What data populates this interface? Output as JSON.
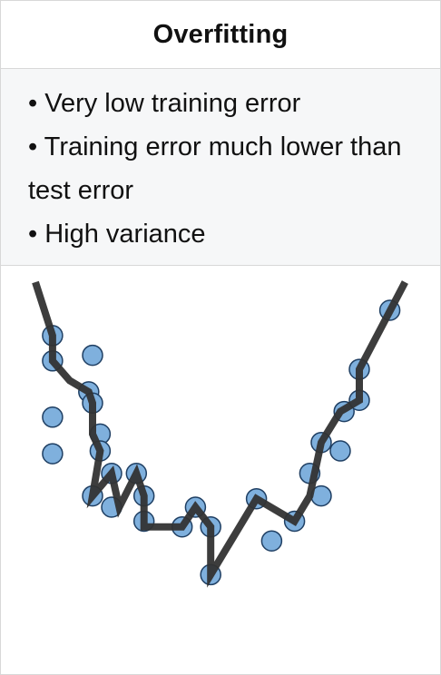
{
  "header": {
    "title": "Overfitting"
  },
  "bullets": [
    "• Very low training error",
    "• Training error much lower than test error",
    "• High variance"
  ],
  "chart_data": {
    "type": "scatter",
    "title": "",
    "xlabel": "",
    "ylabel": "",
    "xlim": [
      0,
      10
    ],
    "ylim": [
      0,
      10
    ],
    "grid": false,
    "points": [
      {
        "x": 0.45,
        "y": 8.1
      },
      {
        "x": 0.45,
        "y": 7.2
      },
      {
        "x": 0.45,
        "y": 5.2
      },
      {
        "x": 0.45,
        "y": 3.9
      },
      {
        "x": 1.5,
        "y": 7.4
      },
      {
        "x": 1.4,
        "y": 6.1
      },
      {
        "x": 1.5,
        "y": 5.7
      },
      {
        "x": 1.7,
        "y": 4.6
      },
      {
        "x": 1.7,
        "y": 4.0
      },
      {
        "x": 1.5,
        "y": 2.4
      },
      {
        "x": 2.0,
        "y": 3.2
      },
      {
        "x": 2.0,
        "y": 2.0
      },
      {
        "x": 2.65,
        "y": 3.2
      },
      {
        "x": 2.85,
        "y": 2.4
      },
      {
        "x": 2.85,
        "y": 1.5
      },
      {
        "x": 3.85,
        "y": 1.3
      },
      {
        "x": 4.2,
        "y": 2.0
      },
      {
        "x": 4.6,
        "y": 1.3
      },
      {
        "x": 4.6,
        "y": -0.4
      },
      {
        "x": 5.8,
        "y": 2.3
      },
      {
        "x": 6.2,
        "y": 0.8
      },
      {
        "x": 6.8,
        "y": 1.5
      },
      {
        "x": 7.2,
        "y": 3.2
      },
      {
        "x": 7.5,
        "y": 2.4
      },
      {
        "x": 7.5,
        "y": 4.3
      },
      {
        "x": 8.0,
        "y": 4.0
      },
      {
        "x": 8.1,
        "y": 5.4
      },
      {
        "x": 8.5,
        "y": 5.8
      },
      {
        "x": 8.5,
        "y": 6.9
      },
      {
        "x": 9.3,
        "y": 9.0
      }
    ],
    "fit_line": {
      "x": [
        0.0,
        0.45,
        0.45,
        0.9,
        1.4,
        1.5,
        1.5,
        1.7,
        1.5,
        2.0,
        2.2,
        2.65,
        2.85,
        2.85,
        3.85,
        4.2,
        4.6,
        4.6,
        5.8,
        6.8,
        7.2,
        7.5,
        8.0,
        8.5,
        8.5,
        9.7
      ],
      "y": [
        10.0,
        8.1,
        7.2,
        6.5,
        6.1,
        5.7,
        4.6,
        4.0,
        2.4,
        3.2,
        2.0,
        3.2,
        2.4,
        1.3,
        1.3,
        2.0,
        1.3,
        -0.4,
        2.3,
        1.5,
        2.4,
        4.3,
        5.4,
        5.8,
        6.9,
        10.0
      ]
    },
    "colors": {
      "point_fill": "#7fb0dd",
      "point_stroke": "#1f3f63",
      "line": "#333333"
    }
  }
}
